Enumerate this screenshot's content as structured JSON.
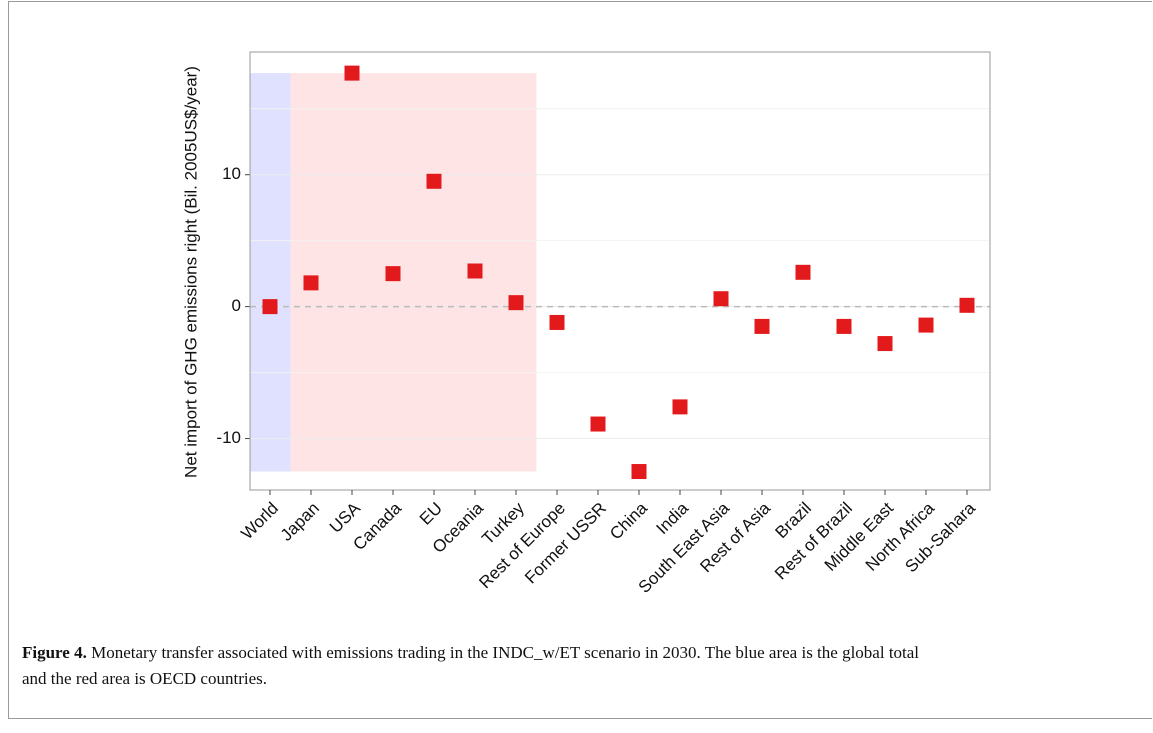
{
  "chart_data": {
    "type": "scatter",
    "y_label": "Net import of GHG emissions right (Bil. 2005US$/year)",
    "categories": [
      "World",
      "Japan",
      "USA",
      "Canada",
      "EU",
      "Oceania",
      "Turkey",
      "Rest of Europe",
      "Former USSR",
      "China",
      "India",
      "South East Asia",
      "Rest of Asia",
      "Brazil",
      "Rest of Brazil",
      "Middle East",
      "North Africa",
      "Sub-Sahara"
    ],
    "values": [
      0,
      1.8,
      17.7,
      2.5,
      9.5,
      2.7,
      0.3,
      -1.2,
      -8.9,
      -12.5,
      -7.6,
      0.6,
      -1.5,
      2.6,
      -1.5,
      -2.8,
      -1.4,
      0.1
    ],
    "color": "#e31a1c",
    "ylim": [
      -13.9,
      19.3
    ],
    "yticks": [
      -10,
      0,
      10
    ],
    "yminor": [
      -5,
      5,
      15
    ],
    "grid": true,
    "reference_line": 0,
    "shaded_regions": [
      {
        "start": 0,
        "end": 0,
        "color": "#e0e0ff"
      },
      {
        "start": 1,
        "end": 6,
        "color": "#ffe4e6"
      }
    ]
  },
  "caption": {
    "label": "Figure 4.",
    "lines": [
      "Monetary transfer associated with emissions trading in the INDC_w/ET scenario in 2030. The blue area is the global total",
      "and the red area is OECD countries."
    ]
  }
}
